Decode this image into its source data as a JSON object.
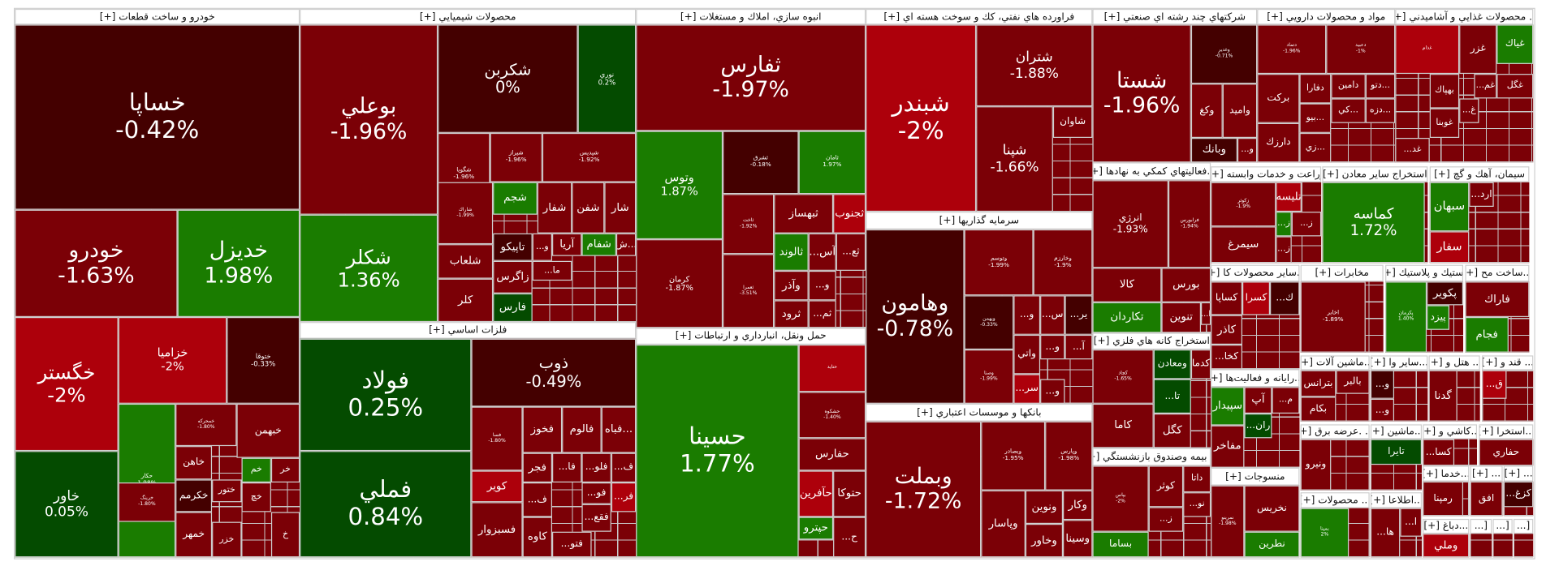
{
  "sectors": [
    {
      "title": "خودرو و ساخت قطعات [+]",
      "tiles": [
        {
          "label": "خساپا",
          "change": "-0.42%"
        },
        {
          "label": "خودرو",
          "change": "-1.63%"
        },
        {
          "label": "خديزل",
          "change": "1.98%"
        },
        {
          "label": "خگستر",
          "change": "-2%"
        },
        {
          "label": "خزاميا",
          "change": "-2%"
        },
        {
          "label": "ختوقا",
          "change": "-0.33%"
        },
        {
          "label": "خاور",
          "change": "0.05%"
        },
        {
          "label": "حكار",
          "change": "1.98%"
        },
        {
          "label": "خمحركه",
          "change": "-1.80%"
        },
        {
          "label": "خبهمن",
          "change": ""
        },
        {
          "label": "خاهن",
          "change": ""
        },
        {
          "label": "خكرمم",
          "change": ""
        },
        {
          "label": "خمهر",
          "change": ""
        },
        {
          "label": "ختور",
          "change": ""
        },
        {
          "label": "خزر",
          "change": ""
        },
        {
          "label": "خم",
          "change": ""
        },
        {
          "label": "خر",
          "change": ""
        },
        {
          "label": "خرينگ",
          "change": "-1.80%"
        },
        {
          "label": "خچ",
          "change": ""
        },
        {
          "label": "خ",
          "change": ""
        }
      ]
    },
    {
      "title": "محصولات شيميايي [+]",
      "tiles": [
        {
          "label": "بوعلي",
          "change": "-1.96%"
        },
        {
          "label": "شكلر",
          "change": "1.36%"
        },
        {
          "label": "شكربن",
          "change": "0%"
        },
        {
          "label": "نوري",
          "change": "0.2%"
        },
        {
          "label": "شگويا",
          "change": "-1.96%"
        },
        {
          "label": "شيراز",
          "change": "-1.96%"
        },
        {
          "label": "شپديس",
          "change": "-1.92%"
        },
        {
          "label": "شاراك",
          "change": "-1.99%"
        },
        {
          "label": "شجم",
          "change": ""
        },
        {
          "label": "شفار",
          "change": ""
        },
        {
          "label": "شفن",
          "change": ""
        },
        {
          "label": "شار",
          "change": ""
        },
        {
          "label": "شلعاب",
          "change": ""
        },
        {
          "label": "كلر",
          "change": ""
        },
        {
          "label": "تاپيكو",
          "change": ""
        },
        {
          "label": "زاگرس",
          "change": ""
        },
        {
          "label": "فارس",
          "change": ""
        },
        {
          "label": "آريا",
          "change": ""
        },
        {
          "label": "شفام",
          "change": ""
        },
        {
          "label": "ش...",
          "change": ""
        },
        {
          "label": "...و",
          "change": ""
        },
        {
          "label": "...ما",
          "change": ""
        }
      ]
    },
    {
      "title": "فلزات اساسي [+]",
      "tiles": [
        {
          "label": "فولاد",
          "change": "0.25%"
        },
        {
          "label": "فملي",
          "change": "0.84%"
        },
        {
          "label": "ذوب",
          "change": "-0.49%"
        },
        {
          "label": "فسا",
          "change": "-1.80%"
        },
        {
          "label": "فخوز",
          "change": ""
        },
        {
          "label": "فالوم",
          "change": ""
        },
        {
          "label": "فباه...",
          "change": ""
        },
        {
          "label": "كوير",
          "change": ""
        },
        {
          "label": "فسبزوار",
          "change": ""
        },
        {
          "label": "فجر",
          "change": ""
        },
        {
          "label": "كاوه",
          "change": ""
        },
        {
          "label": "...ف",
          "change": ""
        },
        {
          "label": "...فا",
          "change": ""
        },
        {
          "label": "...فلو",
          "change": ""
        },
        {
          "label": "...ف",
          "change": ""
        },
        {
          "label": "...فو",
          "change": ""
        },
        {
          "label": "...فقع",
          "change": ""
        },
        {
          "label": "...فر",
          "change": ""
        },
        {
          "label": "...فتو",
          "change": ""
        }
      ]
    },
    {
      "title": "انبوه سازي، املاك و مستغلات [+]",
      "tiles": [
        {
          "label": "ثفارس",
          "change": "-1.97%"
        },
        {
          "label": "وتوس",
          "change": "1.87%"
        },
        {
          "label": "كرمان",
          "change": "-1.87%"
        },
        {
          "label": "ثشرق",
          "change": "-0.18%"
        },
        {
          "label": "ثامان",
          "change": "1.97%"
        },
        {
          "label": "ثاخت",
          "change": "-1.92%"
        },
        {
          "label": "ثعمرا",
          "change": "-3.51%"
        },
        {
          "label": "ثبهساز",
          "change": ""
        },
        {
          "label": "ثجنوب",
          "change": ""
        },
        {
          "label": "ثالوند",
          "change": ""
        },
        {
          "label": "...آس",
          "change": ""
        },
        {
          "label": "...ثع",
          "change": ""
        },
        {
          "label": "...و",
          "change": ""
        },
        {
          "label": "وآذر",
          "change": ""
        },
        {
          "label": "ثرود",
          "change": ""
        },
        {
          "label": "...ثم",
          "change": ""
        }
      ]
    },
    {
      "title": "حمل ونقل، انبارداري و ارتباطات [+]",
      "tiles": [
        {
          "label": "حسينا",
          "change": "1.77%"
        },
        {
          "label": "حتايد",
          "change": ""
        },
        {
          "label": "حشكوه",
          "change": "-1.40%"
        },
        {
          "label": "حفارس",
          "change": ""
        },
        {
          "label": "حآفرين",
          "change": ""
        },
        {
          "label": "حتوكا",
          "change": ""
        },
        {
          "label": "حپترو",
          "change": ""
        },
        {
          "label": "...ح",
          "change": ""
        }
      ]
    },
    {
      "title": "فراورده هاي نفتي، كك و سوخت هسته اي [+]",
      "tiles": [
        {
          "label": "شبندر",
          "change": "-2%"
        },
        {
          "label": "شتران",
          "change": "-1.88%"
        },
        {
          "label": "شپنا",
          "change": "-1.66%"
        },
        {
          "label": "شاوان",
          "change": ""
        }
      ]
    },
    {
      "title": "سرمايه گذاريها [+]",
      "tiles": [
        {
          "label": "وهامون",
          "change": "-0.78%"
        },
        {
          "label": "وتوسم",
          "change": "-1.99%"
        },
        {
          "label": "وخارزم",
          "change": "-1.9%"
        },
        {
          "label": "وبهمن",
          "change": "-0.33%"
        },
        {
          "label": "وصنا",
          "change": "-1.99%"
        },
        {
          "label": "...و",
          "change": ""
        },
        {
          "label": "...س",
          "change": ""
        },
        {
          "label": "...ير",
          "change": ""
        },
        {
          "label": "واتي",
          "change": ""
        },
        {
          "label": "...و",
          "change": ""
        },
        {
          "label": "...آ",
          "change": ""
        },
        {
          "label": "...سر",
          "change": ""
        },
        {
          "label": "...و",
          "change": ""
        }
      ]
    },
    {
      "title": "بانكها و موسسات اعتباري [+]",
      "tiles": [
        {
          "label": "وبملت",
          "change": "-1.72%"
        },
        {
          "label": "وبصادر",
          "change": "-1.95%"
        },
        {
          "label": "وپارس",
          "change": "-1.98%"
        },
        {
          "label": "وپاسار",
          "change": ""
        },
        {
          "label": "ونوين",
          "change": ""
        },
        {
          "label": "وكار",
          "change": ""
        },
        {
          "label": "وخاور",
          "change": ""
        },
        {
          "label": "وسينا",
          "change": ""
        }
      ]
    },
    {
      "title": "شركتهاي چند رشته اي صنعتي [+]",
      "tiles": [
        {
          "label": "شستا",
          "change": "-1.96%"
        },
        {
          "label": "وغدير",
          "change": "-0.71%"
        },
        {
          "label": "وكغ",
          "change": ""
        },
        {
          "label": "واميد",
          "change": ""
        },
        {
          "label": "وبانك",
          "change": ""
        },
        {
          "label": "...و",
          "change": ""
        }
      ]
    },
    {
      "title": "...فعاليتهاي كمكي به نهادها [+]",
      "tiles": [
        {
          "label": "انرژي",
          "change": "-1.93%"
        },
        {
          "label": "فرابورس",
          "change": "-1.94%"
        },
        {
          "label": "كالا",
          "change": ""
        },
        {
          "label": "بورس",
          "change": ""
        },
        {
          "label": "تكاردان",
          "change": ""
        },
        {
          "label": "تنوين",
          "change": ""
        },
        {
          "label": "...ا",
          "change": ""
        }
      ]
    },
    {
      "title": "استخراج كانه هاي فلزي [+]",
      "tiles": [
        {
          "label": "كچاد",
          "change": "-1.65%"
        },
        {
          "label": "ومعادن",
          "change": ""
        },
        {
          "label": "كدما",
          "change": ""
        },
        {
          "label": "...تا",
          "change": ""
        },
        {
          "label": "كاما",
          "change": ""
        },
        {
          "label": "كگل",
          "change": ""
        }
      ]
    },
    {
      "title": "... بيمه وصندوق بازنشستگي [+]",
      "tiles": [
        {
          "label": "بپاس",
          "change": "-2%"
        },
        {
          "label": "بساما",
          "change": ""
        },
        {
          "label": "كوثر",
          "change": ""
        },
        {
          "label": "داتا",
          "change": ""
        },
        {
          "label": "...ز",
          "change": ""
        },
        {
          "label": "...نو",
          "change": ""
        }
      ]
    },
    {
      "title": "مواد و محصولات دارويي [+]",
      "tiles": [
        {
          "label": "دتماد",
          "change": "-1.96%"
        },
        {
          "label": "دعبيد",
          "change": "-1%"
        },
        {
          "label": "بركت",
          "change": ""
        },
        {
          "label": "دارزك",
          "change": ""
        },
        {
          "label": "دفارا",
          "change": ""
        },
        {
          "label": "دامين",
          "change": ""
        },
        {
          "label": "دتو...",
          "change": ""
        },
        {
          "label": "بيو...",
          "change": ""
        },
        {
          "label": "كي...",
          "change": ""
        },
        {
          "label": "دزه...",
          "change": ""
        },
        {
          "label": "زي...",
          "change": ""
        }
      ]
    },
    {
      "title": "... محصولات غذايي و آشاميدني [+]",
      "tiles": [
        {
          "label": "غدام",
          "change": ""
        },
        {
          "label": "غزر",
          "change": ""
        },
        {
          "label": "غياك",
          "change": ""
        },
        {
          "label": "بهپاك",
          "change": ""
        },
        {
          "label": "...غم",
          "change": ""
        },
        {
          "label": "غگل",
          "change": ""
        },
        {
          "label": "غوبنا",
          "change": ""
        },
        {
          "label": "...غ",
          "change": ""
        },
        {
          "label": "...غد",
          "change": ""
        }
      ]
    },
    {
      "title": "زراعت و خدمات وابسته [+]",
      "tiles": [
        {
          "label": "زكوثر",
          "change": "-1.9%"
        },
        {
          "label": "تليسه",
          "change": ""
        },
        {
          "label": "...ز",
          "change": ""
        },
        {
          "label": "...ز",
          "change": ""
        },
        {
          "label": "سيمرغ",
          "change": ""
        },
        {
          "label": "...ز",
          "change": ""
        }
      ]
    },
    {
      "title": "استخراج ساير معادن [+]",
      "tiles": [
        {
          "label": "كماسه",
          "change": "1.72%"
        }
      ]
    },
    {
      "title": "سيمان، آهك و گچ [+]",
      "tiles": [
        {
          "label": "سبهان",
          "change": ""
        },
        {
          "label": "سفار",
          "change": ""
        },
        {
          "label": "...ارد",
          "change": ""
        }
      ]
    },
    {
      "title": "...ساير محصولات كا [+]",
      "tiles": [
        {
          "label": "كساپا",
          "change": ""
        },
        {
          "label": "كسرا",
          "change": ""
        },
        {
          "label": "...ك",
          "change": ""
        },
        {
          "label": "كاذر",
          "change": ""
        },
        {
          "label": "...كخا",
          "change": ""
        }
      ]
    },
    {
      "title": "...رايانه و فعاليت‌ها [+]",
      "tiles": [
        {
          "label": "سپيدار",
          "change": ""
        },
        {
          "label": "آپ",
          "change": ""
        },
        {
          "label": "...م",
          "change": ""
        },
        {
          "label": "...ران",
          "change": ""
        },
        {
          "label": "مفاخر",
          "change": ""
        }
      ]
    },
    {
      "title": "منسوجات [+]",
      "tiles": [
        {
          "label": "نخريس",
          "change": ""
        },
        {
          "label": "نطرين",
          "change": ""
        },
        {
          "label": "نمرينو",
          "change": "-1.98%"
        }
      ]
    },
    {
      "title": "مخابرات [+]",
      "tiles": [
        {
          "label": "اخابر",
          "change": "-1.89%"
        }
      ]
    },
    {
      "title": "لاستيك و پلاستيك [+]",
      "tiles": [
        {
          "label": "پكرمان",
          "change": "1.40%"
        },
        {
          "label": "پكوير",
          "change": ""
        },
        {
          "label": "پيزد",
          "change": ""
        }
      ]
    },
    {
      "title": "...ساخت مح [+]",
      "tiles": [
        {
          "label": "فاراك",
          "change": ""
        },
        {
          "label": "فجام",
          "change": ""
        }
      ]
    },
    {
      "title": "...ماشين آلات [+]",
      "tiles": [
        {
          "label": "بترانس",
          "change": ""
        },
        {
          "label": "بالبر",
          "change": ""
        },
        {
          "label": "بكام",
          "change": ""
        }
      ]
    },
    {
      "title": "...ساير وا [+]",
      "tiles": [
        {
          "label": "...و",
          "change": ""
        },
        {
          "label": "...و",
          "change": ""
        }
      ]
    },
    {
      "title": "... هتل و [+]",
      "tiles": [
        {
          "label": "گدنا",
          "change": ""
        }
      ]
    },
    {
      "title": "... قند و [+]",
      "tiles": [
        {
          "label": "...ق",
          "change": ""
        }
      ]
    },
    {
      "title": "... .عرضه برق [+]",
      "tiles": [
        {
          "label": "ونيرو",
          "change": ""
        }
      ]
    },
    {
      "title": "...ماشين [+]",
      "tiles": [
        {
          "label": "تايرا",
          "change": ""
        }
      ]
    },
    {
      "title": "...كاشي و [+]",
      "tiles": [
        {
          "label": "...كسا",
          "change": ""
        }
      ]
    },
    {
      "title": "...استخرا [+]",
      "tiles": [
        {
          "label": "حفاري",
          "change": ""
        }
      ]
    },
    {
      "title": "...خدما [+]",
      "tiles": [
        {
          "label": "رمپنا",
          "change": ""
        }
      ]
    },
    {
      "title": "... [+]",
      "tiles": [
        {
          "label": "افق",
          "change": ""
        }
      ]
    },
    {
      "title": "... [+]",
      "tiles": [
        {
          "label": "...كزغ",
          "change": ""
        }
      ]
    },
    {
      "title": "... محصولات [+]",
      "tiles": [
        {
          "label": "بمپنا",
          "change": "2%"
        }
      ]
    },
    {
      "title": "...اطلاعا [+]",
      "tiles": [
        {
          "label": "...ها",
          "change": ""
        },
        {
          "label": "...ا",
          "change": ""
        }
      ]
    },
    {
      "title": "...دباغ [+]",
      "tiles": [
        {
          "label": "وملي",
          "change": ""
        }
      ]
    },
    {
      "title": "[...",
      "tiles": []
    },
    {
      "title": "[...",
      "tiles": []
    },
    {
      "title": "[...",
      "tiles": []
    }
  ],
  "colors": {
    "strong_down": "#ad000b",
    "down": "#7b0006",
    "flat": "#440000",
    "up": "#1a7c00",
    "mild_up": "#044b00"
  }
}
